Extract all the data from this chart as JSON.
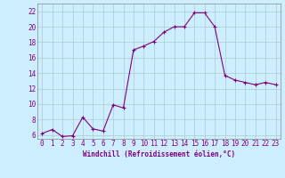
{
  "x": [
    0,
    1,
    2,
    3,
    4,
    5,
    6,
    7,
    8,
    9,
    10,
    11,
    12,
    13,
    14,
    15,
    16,
    17,
    18,
    19,
    20,
    21,
    22,
    23
  ],
  "y": [
    6.2,
    6.7,
    5.8,
    5.9,
    8.3,
    6.8,
    6.5,
    9.9,
    9.5,
    17.0,
    17.5,
    18.1,
    19.3,
    20.0,
    20.0,
    21.8,
    21.8,
    20.0,
    13.7,
    13.1,
    12.8,
    12.5,
    12.8,
    12.5
  ],
  "line_color": "#800080",
  "marker": "+",
  "marker_size": 3,
  "marker_lw": 0.8,
  "bg_color": "#cceeff",
  "grid_color": "#aacccc",
  "xlabel": "Windchill (Refroidissement éolien,°C)",
  "xlabel_color": "#800080",
  "tick_color": "#800080",
  "ylim": [
    5.5,
    23.0
  ],
  "xlim": [
    -0.5,
    23.5
  ],
  "yticks": [
    6,
    8,
    10,
    12,
    14,
    16,
    18,
    20,
    22
  ],
  "xticks": [
    0,
    1,
    2,
    3,
    4,
    5,
    6,
    7,
    8,
    9,
    10,
    11,
    12,
    13,
    14,
    15,
    16,
    17,
    18,
    19,
    20,
    21,
    22,
    23
  ],
  "tick_fontsize": 5.5,
  "xlabel_fontsize": 5.5
}
